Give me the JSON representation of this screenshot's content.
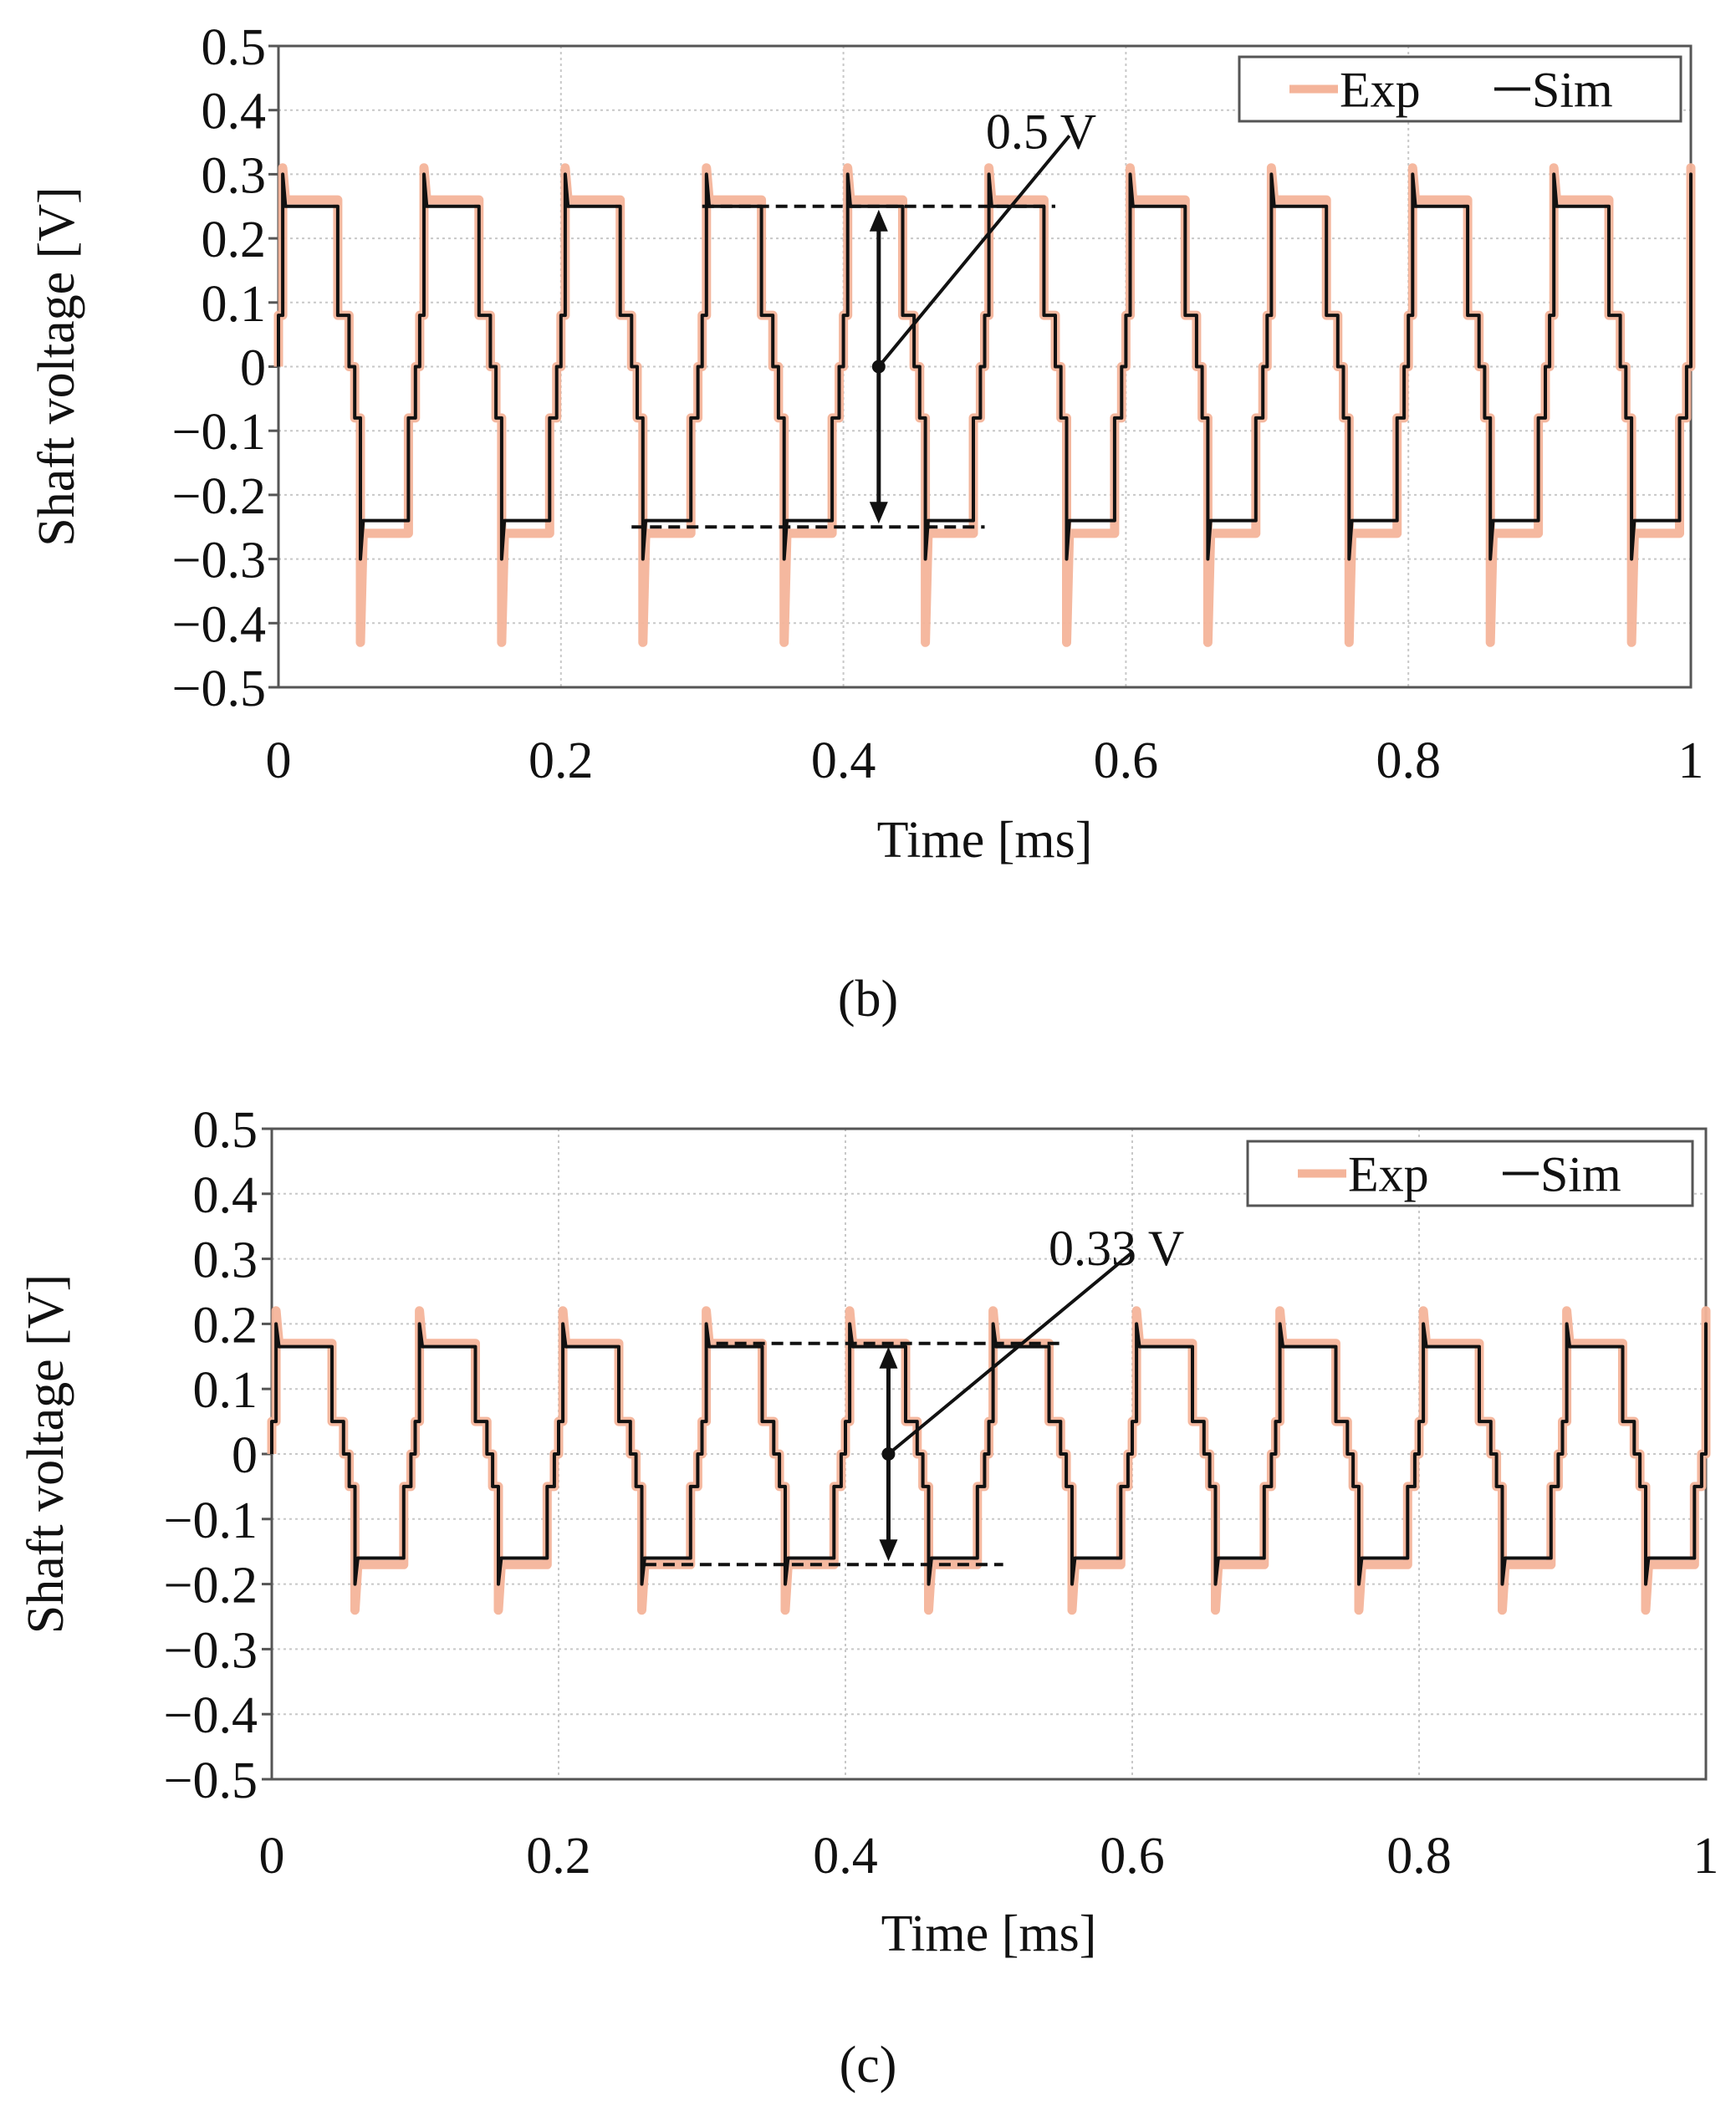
{
  "colors": {
    "exp": "#f4b49a",
    "sim": "#111111",
    "grid": "#c8c8c8",
    "axis": "#555555"
  },
  "chart_data": [
    {
      "type": "line",
      "panel_label": "(b)",
      "xlabel": "Time [ms]",
      "ylabel": "Shaft voltage [V]",
      "xlim": [
        0,
        1
      ],
      "ylim": [
        -0.5,
        0.5
      ],
      "xticks": [
        0,
        0.2,
        0.4,
        0.6,
        0.8,
        1
      ],
      "xtick_labels": [
        "0",
        "0.2",
        "0.4",
        "0.6",
        "0.8",
        "1"
      ],
      "yticks": [
        0.5,
        0.4,
        0.3,
        0.2,
        0.1,
        0,
        -0.1,
        -0.2,
        -0.3,
        -0.4,
        -0.5
      ],
      "ytick_labels": [
        "0.5",
        "0.4",
        "0.3",
        "0.2",
        "0.1",
        "0",
        "−0.1",
        "−0.2",
        "−0.3",
        "−0.4",
        "−0.5"
      ],
      "grid": true,
      "legend": {
        "position": "top-right",
        "entries": [
          "Exp",
          "Sim"
        ]
      },
      "waveform": {
        "period_ms": 0.1,
        "phase_ms": 0.0,
        "plateau_high": 0.25,
        "plateau_low": -0.25,
        "notch_level": 0.08,
        "sim_spike": 0.3,
        "exp_spike_low": -0.43
      },
      "series": [
        {
          "name": "Exp",
          "color": "#f4b49a",
          "plateau_high": 0.26,
          "plateau_low": -0.26
        },
        {
          "name": "Sim",
          "color": "#111111",
          "plateau_high": 0.25,
          "plateau_low": -0.24
        }
      ],
      "annotation": {
        "text": "0.5 V",
        "upper_line": {
          "x": [
            0.3,
            0.55
          ],
          "y": 0.25
        },
        "lower_line": {
          "x": [
            0.25,
            0.5
          ],
          "y": -0.25
        },
        "arrow_x": 0.425,
        "leader_from": [
          0.425,
          0.0
        ],
        "leader_to": [
          0.56,
          0.36
        ]
      }
    },
    {
      "type": "line",
      "panel_label": "(c)",
      "xlabel": "Time [ms]",
      "ylabel": "Shaft voltage [V]",
      "xlim": [
        0,
        1
      ],
      "ylim": [
        -0.5,
        0.5
      ],
      "xticks": [
        0,
        0.2,
        0.4,
        0.6,
        0.8,
        1
      ],
      "xtick_labels": [
        "0",
        "0.2",
        "0.4",
        "0.6",
        "0.8",
        "1"
      ],
      "yticks": [
        0.5,
        0.4,
        0.3,
        0.2,
        0.1,
        0,
        -0.1,
        -0.2,
        -0.3,
        -0.4,
        -0.5
      ],
      "ytick_labels": [
        "0.5",
        "0.4",
        "0.3",
        "0.2",
        "0.1",
        "0",
        "−0.1",
        "−0.2",
        "−0.3",
        "−0.4",
        "−0.5"
      ],
      "grid": true,
      "legend": {
        "position": "top-right",
        "entries": [
          "Exp",
          "Sim"
        ]
      },
      "waveform": {
        "period_ms": 0.1,
        "phase_ms": 0.0,
        "plateau_high": 0.165,
        "plateau_low": -0.165,
        "notch_level": 0.05,
        "sim_spike": 0.2,
        "exp_spike_low": -0.24
      },
      "series": [
        {
          "name": "Exp",
          "color": "#f4b49a",
          "plateau_high": 0.17,
          "plateau_low": -0.17
        },
        {
          "name": "Sim",
          "color": "#111111",
          "plateau_high": 0.165,
          "plateau_low": -0.16
        }
      ],
      "annotation": {
        "text": "0.33 V",
        "upper_line": {
          "x": [
            0.31,
            0.55
          ],
          "y": 0.17
        },
        "lower_line": {
          "x": [
            0.26,
            0.51
          ],
          "y": -0.17
        },
        "arrow_x": 0.43,
        "leader_from": [
          0.43,
          0.0
        ],
        "leader_to": [
          0.6,
          0.31
        ]
      }
    }
  ]
}
